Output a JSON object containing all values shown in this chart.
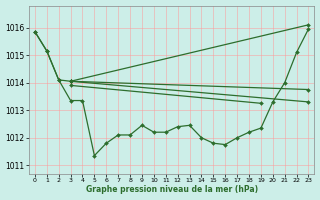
{
  "background_color": "#cceee8",
  "grid_color": "#ff9999",
  "line_color": "#2d6e2d",
  "xlabel": "Graphe pression niveau de la mer (hPa)",
  "xlim": [
    -0.5,
    23.5
  ],
  "ylim": [
    1010.7,
    1016.8
  ],
  "yticks": [
    1011,
    1012,
    1013,
    1014,
    1015,
    1016
  ],
  "xticks": [
    0,
    1,
    2,
    3,
    4,
    5,
    6,
    7,
    8,
    9,
    10,
    11,
    12,
    13,
    14,
    15,
    16,
    17,
    18,
    19,
    20,
    21,
    22,
    23
  ],
  "series": [
    {
      "x": [
        0,
        1,
        2,
        3,
        4,
        5,
        6,
        7,
        8,
        9,
        10,
        11,
        12,
        13,
        14,
        15,
        16,
        17,
        18,
        19,
        20,
        21,
        22,
        23
      ],
      "y": [
        1015.85,
        1015.15,
        1014.1,
        1013.35,
        1013.35,
        1011.35,
        1011.8,
        1012.1,
        1012.1,
        1012.45,
        1012.2,
        1012.2,
        1012.4,
        1012.45,
        1012.0,
        1011.8,
        1011.75,
        1012.0,
        1012.2,
        1012.35,
        1013.3,
        1014.0,
        1015.1,
        1015.95
      ]
    },
    {
      "x": [
        0,
        1,
        2,
        3,
        23
      ],
      "y": [
        1015.85,
        1015.15,
        1014.1,
        1014.05,
        1016.1
      ]
    },
    {
      "x": [
        3,
        23
      ],
      "y": [
        1014.05,
        1013.75
      ]
    },
    {
      "x": [
        3,
        23
      ],
      "y": [
        1014.05,
        1013.3
      ]
    },
    {
      "x": [
        3,
        19
      ],
      "y": [
        1013.9,
        1013.25
      ]
    }
  ]
}
